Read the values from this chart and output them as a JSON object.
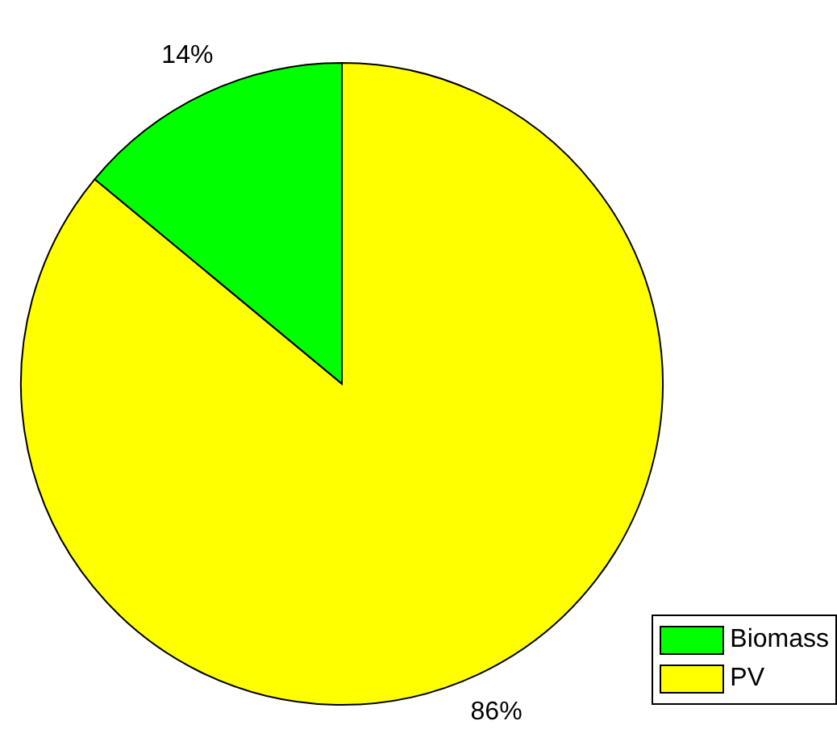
{
  "chart_data": {
    "type": "pie",
    "categories": [
      "Biomass",
      "PV"
    ],
    "values": [
      14,
      86
    ],
    "colors": [
      "#00ff00",
      "#ffff00"
    ],
    "value_labels": [
      "14%",
      "86%"
    ],
    "legend": "bottom right"
  }
}
